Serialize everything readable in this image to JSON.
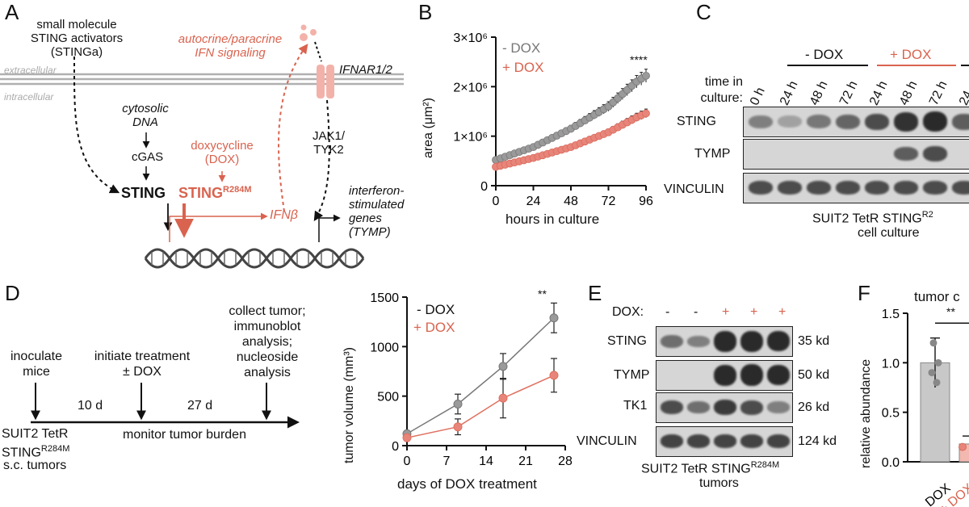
{
  "panels": {
    "A": "A",
    "B": "B",
    "C": "C",
    "D": "D",
    "E": "E",
    "F": "F"
  },
  "panelA": {
    "stinga": "small molecule\nSTING activators\n(STINGa)",
    "autocrine": "autocrine/paracrine\nIFN signaling",
    "ifnar": "IFNAR1/2",
    "extracellular": "extracellular",
    "intracellular": "intracellular",
    "cytosolic": "cytosolic\nDNA",
    "cgas": "cGAS",
    "dox": "doxycycline\n(DOX)",
    "jak": "JAK1/\nTYK2",
    "sting": "STING",
    "sting_mut": "STING",
    "sting_mut_sup": "R284M",
    "isg": "interferon-\nstimulated\ngenes\n(TYMP)",
    "ifnb": "IFNβ"
  },
  "panelB": {
    "ylabel": "area (μm²)",
    "xlabel": "hours in culture",
    "legend_minus": "- DOX",
    "legend_plus": "+ DOX",
    "sig": "****",
    "yticks": [
      "0",
      "1×10⁶",
      "2×10⁶",
      "3×10⁶"
    ],
    "xticks": [
      "0",
      "24",
      "48",
      "72",
      "96"
    ]
  },
  "panelC": {
    "minus": "- DOX",
    "plus": "+ DOX",
    "time_label": "time in\nculture:",
    "lanes": [
      "0 h",
      "24 h",
      "48 h",
      "72 h",
      "24 h",
      "48 h",
      "72 h",
      "24"
    ],
    "rows": [
      "STING",
      "TYMP",
      "VINCULIN"
    ],
    "caption": "SUIT2 TetR STING",
    "caption_sup": "R2",
    "caption2": "cell culture"
  },
  "panelD": {
    "collect": "collect tumor;\nimmunoblot\nanalysis;\nnucleoside\nanalysis",
    "inoculate": "inoculate\nmice",
    "initiate": "initiate treatment\n± DOX",
    "d10": "10 d",
    "d27": "27 d",
    "suit2": "SUIT2 TetR\nSTING",
    "suit2_sup": "R284M",
    "sc": "s.c. tumors",
    "monitor": "monitor tumor burden"
  },
  "panelDchart": {
    "ylabel": "tumor volume (mm³)",
    "xlabel": "days of DOX treatment",
    "legend_minus": "- DOX",
    "legend_plus": "+ DOX",
    "sig": "**",
    "yticks": [
      "0",
      "500",
      "1000",
      "1500"
    ],
    "xticks": [
      "0",
      "7",
      "14",
      "21",
      "28"
    ]
  },
  "panelE": {
    "dox_label": "DOX:",
    "lanes": [
      "-",
      "-",
      "+",
      "+",
      "+"
    ],
    "rows": [
      "STING",
      "TYMP",
      "TK1",
      "VINCULIN"
    ],
    "kd": [
      "35 kd",
      "50 kd",
      "26 kd",
      "124 kd"
    ],
    "caption": "SUIT2 TetR STING",
    "caption_sup": "R284M",
    "caption2": "tumors"
  },
  "panelF": {
    "title": "tumor c",
    "ylabel": "relative abundance",
    "sig": "**",
    "yticks": [
      "0.0",
      "0.5",
      "1.0",
      "1.5"
    ],
    "xlabels": [
      "- DOX",
      "+ DOX"
    ]
  },
  "colors": {
    "minus": "#9a9a9a",
    "plus": "#e8857a",
    "accent": "#d9634f"
  },
  "chart_data": [
    {
      "type": "scatter",
      "title": "",
      "xlabel": "hours in culture",
      "ylabel": "area (μm²)",
      "xlim": [
        0,
        96
      ],
      "ylim": [
        0,
        3000000
      ],
      "series": [
        {
          "name": "- DOX",
          "x": [
            0,
            24,
            48,
            72,
            90,
            96
          ],
          "y": [
            520000,
            780000,
            1150000,
            1600000,
            2100000,
            2220000
          ]
        },
        {
          "name": "+ DOX",
          "x": [
            0,
            24,
            48,
            72,
            90,
            96
          ],
          "y": [
            380000,
            560000,
            780000,
            1080000,
            1380000,
            1460000
          ]
        }
      ]
    },
    {
      "type": "line",
      "title": "",
      "xlabel": "days of DOX treatment",
      "ylabel": "tumor volume (mm³)",
      "xlim": [
        0,
        28
      ],
      "ylim": [
        0,
        1500
      ],
      "series": [
        {
          "name": "- DOX",
          "x": [
            0,
            9,
            17,
            26
          ],
          "y": [
            120,
            420,
            800,
            1290
          ],
          "err": [
            20,
            100,
            130,
            150
          ]
        },
        {
          "name": "+ DOX",
          "x": [
            0,
            9,
            17,
            26
          ],
          "y": [
            80,
            190,
            480,
            710
          ],
          "err": [
            20,
            80,
            200,
            170
          ]
        }
      ]
    },
    {
      "type": "bar",
      "title": "tumor c",
      "ylabel": "relative abundance",
      "categories": [
        "- DOX",
        "+ DOX"
      ],
      "values": [
        1.0,
        0.18
      ],
      "ylim": [
        0,
        1.5
      ]
    }
  ]
}
